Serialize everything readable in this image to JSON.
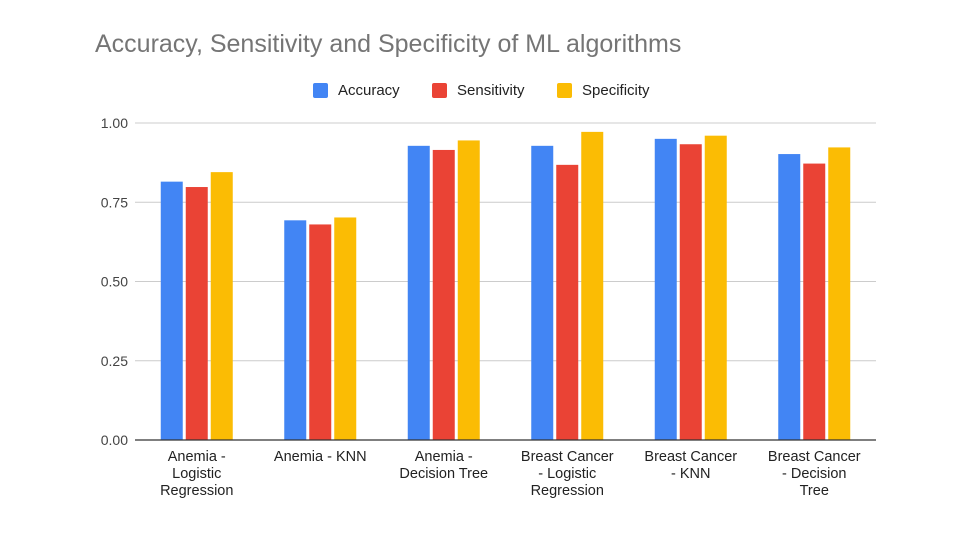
{
  "chart_data": {
    "type": "bar",
    "title": "Accuracy, Sensitivity and Specificity of ML algorithms",
    "xlabel": "",
    "ylabel": "",
    "ylim": [
      0,
      1
    ],
    "yticks": [
      "0.00",
      "0.25",
      "0.50",
      "0.75",
      "1.00"
    ],
    "ytick_values": [
      0,
      0.25,
      0.5,
      0.75,
      1
    ],
    "legend_position": "top",
    "grid": true,
    "categories": [
      [
        "Anemia -",
        "Logistic",
        "Regression"
      ],
      [
        "Anemia - KNN"
      ],
      [
        "Anemia -",
        "Decision Tree"
      ],
      [
        "Breast Cancer",
        "- Logistic",
        "Regression"
      ],
      [
        "Breast Cancer",
        "- KNN"
      ],
      [
        "Breast Cancer",
        "- Decision",
        "Tree"
      ]
    ],
    "series": [
      {
        "name": "Accuracy",
        "color": "#4285F4",
        "values": [
          0.815,
          0.693,
          0.928,
          0.928,
          0.95,
          0.902
        ]
      },
      {
        "name": "Sensitivity",
        "color": "#EA4335",
        "values": [
          0.798,
          0.68,
          0.915,
          0.868,
          0.933,
          0.872
        ]
      },
      {
        "name": "Specificity",
        "color": "#FBBC04",
        "values": [
          0.845,
          0.702,
          0.945,
          0.972,
          0.96,
          0.923
        ]
      }
    ]
  }
}
